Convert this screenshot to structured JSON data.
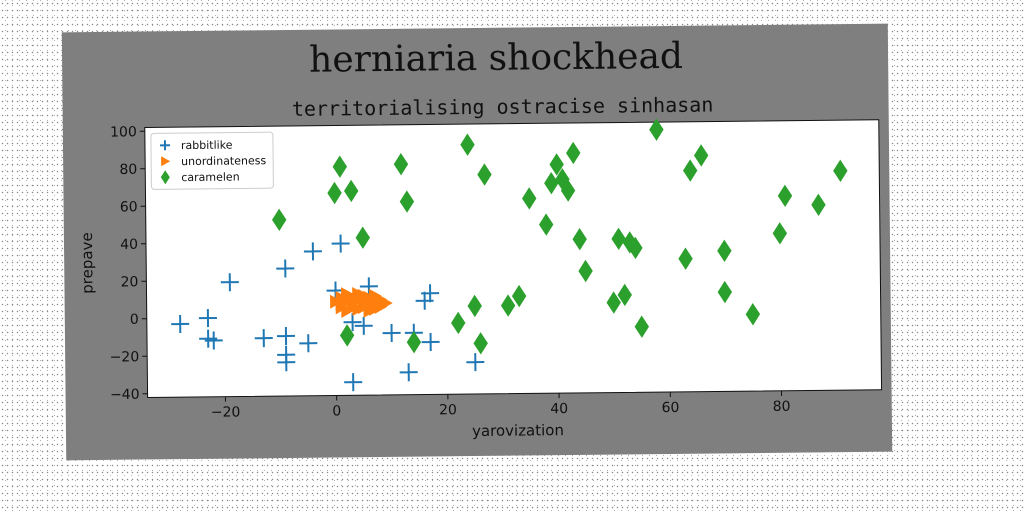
{
  "chart_data": {
    "type": "scatter",
    "title": "herniaria shockhead",
    "subtitle": "territorialising ostracise sinhasan",
    "xlabel": "yarovization",
    "ylabel": "prepave",
    "xlim": [
      -34,
      98
    ],
    "ylim": [
      -42,
      102
    ],
    "xticks": [
      -20,
      0,
      20,
      40,
      60,
      80
    ],
    "yticks": [
      -40,
      -20,
      0,
      20,
      40,
      60,
      80,
      100
    ],
    "grid": false,
    "legend_position": "top-left",
    "series": [
      {
        "name": "rabbitlike",
        "marker": "plus",
        "color": "#1f77b4",
        "points": [
          [
            -28,
            -3
          ],
          [
            -23,
            0
          ],
          [
            -23,
            -11
          ],
          [
            -22,
            -12
          ],
          [
            -19,
            19
          ],
          [
            -13,
            -11
          ],
          [
            -9,
            26
          ],
          [
            -9,
            -10
          ],
          [
            -9,
            -20
          ],
          [
            -9,
            -24
          ],
          [
            -4,
            35
          ],
          [
            -5,
            -14
          ],
          [
            1,
            39
          ],
          [
            0,
            14
          ],
          [
            3,
            -35
          ],
          [
            6,
            16
          ],
          [
            5,
            -5
          ],
          [
            10,
            -9
          ],
          [
            14,
            -9
          ],
          [
            16,
            8
          ],
          [
            17,
            12
          ],
          [
            13,
            -30
          ],
          [
            17,
            -14
          ],
          [
            25,
            -25
          ],
          [
            3,
            -3
          ]
        ]
      },
      {
        "name": "unordinateness",
        "marker": "triangle-right",
        "color": "#ff7f0e",
        "points": [
          [
            0,
            8
          ],
          [
            1,
            10
          ],
          [
            1,
            5
          ],
          [
            2,
            12
          ],
          [
            2,
            3
          ],
          [
            3,
            7
          ],
          [
            3,
            10
          ],
          [
            4,
            4
          ],
          [
            4,
            12
          ],
          [
            5,
            8
          ],
          [
            5,
            5
          ],
          [
            6,
            10
          ],
          [
            6,
            3
          ],
          [
            7,
            7
          ],
          [
            7,
            11
          ],
          [
            8,
            5
          ],
          [
            8,
            9
          ],
          [
            9,
            7
          ],
          [
            2,
            8
          ],
          [
            4,
            9
          ],
          [
            6,
            6
          ],
          [
            3,
            5
          ],
          [
            5,
            11
          ],
          [
            7,
            4
          ],
          [
            1,
            7
          ]
        ]
      },
      {
        "name": "caramelen",
        "marker": "diamond",
        "color": "#2ca02c",
        "points": [
          [
            -10,
            52
          ],
          [
            0,
            66
          ],
          [
            1,
            80
          ],
          [
            2,
            -10
          ],
          [
            3,
            67
          ],
          [
            5,
            42
          ],
          [
            12,
            81
          ],
          [
            13,
            61
          ],
          [
            14,
            -14
          ],
          [
            22,
            -4
          ],
          [
            24,
            91
          ],
          [
            25,
            5
          ],
          [
            26,
            -15
          ],
          [
            27,
            75
          ],
          [
            31,
            5
          ],
          [
            33,
            10
          ],
          [
            35,
            62
          ],
          [
            38,
            48
          ],
          [
            39,
            70
          ],
          [
            40,
            80
          ],
          [
            41,
            72
          ],
          [
            42,
            66
          ],
          [
            43,
            86
          ],
          [
            44,
            40
          ],
          [
            45,
            23
          ],
          [
            50,
            6
          ],
          [
            51,
            40
          ],
          [
            52,
            10
          ],
          [
            53,
            38
          ],
          [
            54,
            35
          ],
          [
            55,
            -7
          ],
          [
            58,
            98
          ],
          [
            63,
            29
          ],
          [
            64,
            76
          ],
          [
            66,
            84
          ],
          [
            70,
            33
          ],
          [
            70,
            11
          ],
          [
            75,
            -1
          ],
          [
            80,
            42
          ],
          [
            81,
            62
          ],
          [
            87,
            57
          ],
          [
            91,
            75
          ]
        ]
      }
    ]
  }
}
